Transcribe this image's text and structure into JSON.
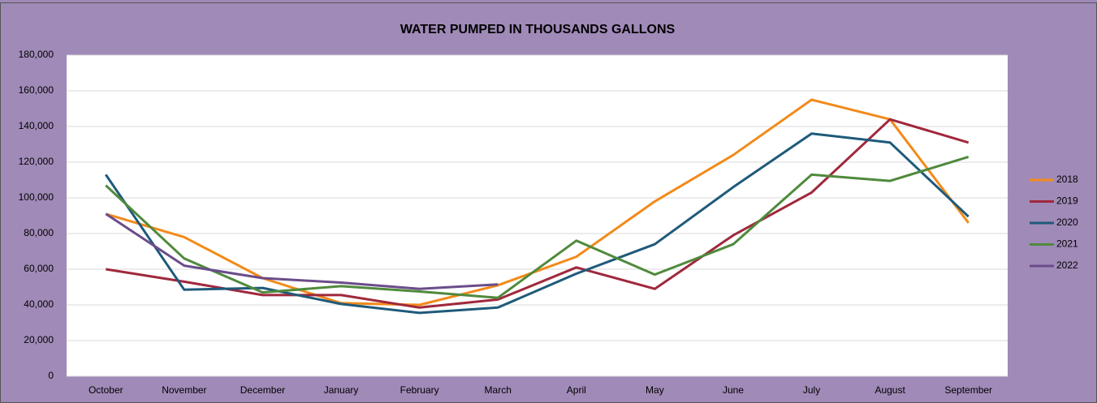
{
  "chart_data": {
    "type": "line",
    "title": "WATER PUMPED IN THOUSANDS GALLONS",
    "categories": [
      "October",
      "November",
      "December",
      "January",
      "February",
      "March",
      "April",
      "May",
      "June",
      "July",
      "August",
      "September"
    ],
    "series": [
      {
        "name": "2018",
        "color": "#f28a1a",
        "values": [
          91000,
          78000,
          55000,
          41000,
          40000,
          51000,
          67000,
          98000,
          124000,
          155000,
          144000,
          86000
        ]
      },
      {
        "name": "2019",
        "color": "#a0283c",
        "values": [
          60000,
          53000,
          45500,
          45500,
          38500,
          43000,
          61000,
          49000,
          79000,
          103000,
          144000,
          131000
        ]
      },
      {
        "name": "2020",
        "color": "#1f5a7a",
        "values": [
          113000,
          48500,
          49500,
          40500,
          35500,
          38500,
          57500,
          74000,
          106000,
          136000,
          131000,
          89500
        ]
      },
      {
        "name": "2021",
        "color": "#4f8a3c",
        "values": [
          107000,
          66000,
          47000,
          50500,
          47500,
          44000,
          76000,
          57000,
          74000,
          113000,
          109500,
          123000
        ]
      },
      {
        "name": "2022",
        "color": "#6b4c8a",
        "values": [
          91000,
          62000,
          55000,
          52500,
          49000,
          51500,
          null,
          null,
          null,
          null,
          null,
          null
        ]
      }
    ],
    "ylim": [
      0,
      180000
    ],
    "yticks": [
      0,
      {
        "value": 20000,
        "label": "20,000"
      },
      {
        "value": 40000,
        "label": "40,000"
      },
      {
        "value": 60000,
        "label": "60,000"
      },
      {
        "value": 80000,
        "label": "80,000"
      },
      {
        "value": 100000,
        "label": "100,000"
      },
      {
        "value": 120000,
        "label": "120,000"
      },
      {
        "value": 140000,
        "label": "140,000"
      },
      {
        "value": 160000,
        "label": "160,000"
      },
      {
        "value": 180000,
        "label": "180,000"
      }
    ],
    "grid": true,
    "legend": "right"
  }
}
